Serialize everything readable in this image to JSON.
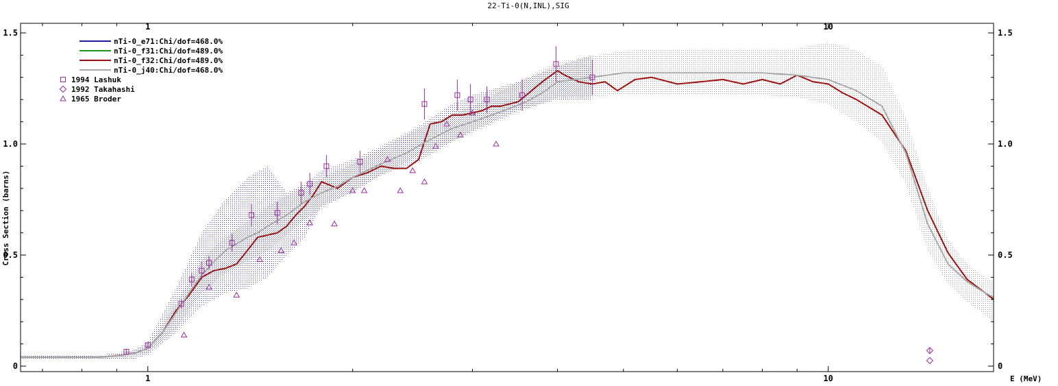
{
  "chart_data": {
    "type": "line",
    "title": "22-Ti-0(N,INL),SIG",
    "xlabel": "E (MeV)",
    "ylabel": "Cross Section (barns)",
    "xscale": "log",
    "xlim": [
      0.65,
      17.5
    ],
    "ylim": [
      0,
      1.5
    ],
    "x_ticks": [
      {
        "value": 1,
        "label": "1"
      },
      {
        "value": 10,
        "label": "10"
      }
    ],
    "y_ticks": [
      {
        "value": 0,
        "label": "0"
      },
      {
        "value": 0.5,
        "label": "0.5"
      },
      {
        "value": 1.0,
        "label": "1.0"
      },
      {
        "value": 1.5,
        "label": "1.5"
      }
    ],
    "legend_position": "top-left",
    "series": [
      {
        "name": "nTi-0_e71:Chi/dof=468.0%",
        "kind": "line",
        "color": "#1c1c9c",
        "visible": false,
        "x": [],
        "y": []
      },
      {
        "name": "nTi-0_f31:Chi/dof=489.0%",
        "kind": "line",
        "color": "#1a9a1a",
        "visible": false,
        "x": [],
        "y": []
      },
      {
        "name": "nTi-0_f32:Chi/dof=489.0%",
        "kind": "line",
        "color": "#9c1010",
        "x": [
          0.65,
          0.85,
          0.92,
          0.96,
          1.0,
          1.05,
          1.1,
          1.15,
          1.2,
          1.25,
          1.3,
          1.35,
          1.4,
          1.45,
          1.5,
          1.55,
          1.6,
          1.65,
          1.7,
          1.75,
          1.8,
          1.9,
          2.0,
          2.1,
          2.2,
          2.3,
          2.4,
          2.5,
          2.6,
          2.7,
          2.8,
          2.9,
          3.0,
          3.1,
          3.2,
          3.3,
          3.4,
          3.5,
          3.6,
          3.8,
          4.0,
          4.1,
          4.3,
          4.5,
          4.7,
          4.9,
          5.2,
          5.5,
          6.0,
          6.5,
          7.0,
          7.5,
          8.0,
          8.5,
          9.0,
          9.5,
          10.0,
          10.5,
          11.0,
          12.0,
          13.0,
          14.0,
          15.0,
          16.0,
          17.0,
          17.5
        ],
        "y": [
          0.04,
          0.04,
          0.05,
          0.06,
          0.08,
          0.15,
          0.25,
          0.32,
          0.4,
          0.43,
          0.44,
          0.46,
          0.52,
          0.58,
          0.59,
          0.6,
          0.63,
          0.68,
          0.72,
          0.77,
          0.83,
          0.8,
          0.85,
          0.87,
          0.9,
          0.89,
          0.89,
          0.93,
          1.09,
          1.1,
          1.13,
          1.13,
          1.14,
          1.15,
          1.17,
          1.17,
          1.18,
          1.19,
          1.22,
          1.28,
          1.33,
          1.31,
          1.28,
          1.27,
          1.28,
          1.24,
          1.29,
          1.3,
          1.27,
          1.28,
          1.29,
          1.27,
          1.29,
          1.27,
          1.31,
          1.28,
          1.27,
          1.23,
          1.2,
          1.13,
          0.97,
          0.7,
          0.51,
          0.39,
          0.33,
          0.3
        ]
      },
      {
        "name": "nTi-0_j40:Chi/dof=468.0%",
        "kind": "line",
        "color": "#a8a8a8",
        "x": [
          0.65,
          0.85,
          0.92,
          0.96,
          1.0,
          1.05,
          1.1,
          1.15,
          1.2,
          1.25,
          1.3,
          1.35,
          1.4,
          1.45,
          1.5,
          1.6,
          1.7,
          1.8,
          1.9,
          2.0,
          2.2,
          2.4,
          2.6,
          2.8,
          3.0,
          3.2,
          3.4,
          3.6,
          3.8,
          4.0,
          4.5,
          5.0,
          6.0,
          7.0,
          8.0,
          9.0,
          10.0,
          11.0,
          12.0,
          13.0,
          14.0,
          15.0,
          16.0,
          17.0,
          17.5
        ],
        "y": [
          0.04,
          0.04,
          0.05,
          0.06,
          0.08,
          0.15,
          0.24,
          0.33,
          0.41,
          0.47,
          0.52,
          0.55,
          0.58,
          0.6,
          0.63,
          0.68,
          0.74,
          0.78,
          0.81,
          0.85,
          0.91,
          0.96,
          1.02,
          1.07,
          1.1,
          1.13,
          1.16,
          1.19,
          1.23,
          1.28,
          1.3,
          1.32,
          1.32,
          1.32,
          1.32,
          1.31,
          1.29,
          1.24,
          1.17,
          0.96,
          0.64,
          0.46,
          0.38,
          0.33,
          0.31
        ]
      },
      {
        "name": "1994 Lashuk",
        "kind": "scatter",
        "marker": "square",
        "color": "#9c2c9c",
        "x": [
          0.93,
          1.0,
          1.12,
          1.16,
          1.2,
          1.23,
          1.33,
          1.42,
          1.55,
          1.68,
          1.73,
          1.83,
          2.05,
          2.55,
          2.85,
          2.98,
          3.15,
          3.55,
          3.98,
          4.5
        ],
        "y": [
          0.065,
          0.095,
          0.28,
          0.39,
          0.43,
          0.465,
          0.555,
          0.68,
          0.69,
          0.78,
          0.82,
          0.9,
          0.92,
          1.18,
          1.22,
          1.2,
          1.2,
          1.22,
          1.36,
          1.3
        ],
        "err": [
          0.01,
          0.01,
          0.02,
          0.03,
          0.04,
          0.03,
          0.04,
          0.05,
          0.05,
          0.05,
          0.05,
          0.05,
          0.05,
          0.07,
          0.07,
          0.07,
          0.06,
          0.07,
          0.08,
          0.08
        ]
      },
      {
        "name": "1992 Takahashi",
        "kind": "scatter",
        "marker": "diamond",
        "color": "#9c2c9c",
        "x": [
          14.1,
          14.1
        ],
        "y": [
          0.07,
          0.025
        ],
        "err": [
          0.015,
          0.0
        ]
      },
      {
        "name": "1965 Broder",
        "kind": "scatter",
        "marker": "triangle",
        "color": "#9c2c9c",
        "x": [
          1.13,
          1.23,
          1.35,
          1.46,
          1.57,
          1.64,
          1.73,
          1.88,
          2.0,
          2.08,
          2.25,
          2.35,
          2.45,
          2.55,
          2.65,
          2.75,
          2.88,
          3.0,
          3.25
        ],
        "y": [
          0.14,
          0.355,
          0.32,
          0.48,
          0.52,
          0.555,
          0.645,
          0.64,
          0.79,
          0.79,
          0.93,
          0.79,
          0.88,
          0.83,
          0.99,
          1.09,
          1.04,
          1.14,
          1.0
        ]
      }
    ],
    "uncertainty_bands": [
      {
        "color": "#6a6acc",
        "x": [
          0.65,
          0.85,
          0.95,
          1.0,
          1.1,
          1.2,
          1.3,
          1.4,
          1.5,
          1.6,
          1.7,
          1.8,
          2.0,
          2.2,
          2.5,
          2.8,
          3.0,
          3.5,
          4.0,
          4.5
        ],
        "lower": [
          0.03,
          0.03,
          0.03,
          0.05,
          0.15,
          0.27,
          0.33,
          0.35,
          0.4,
          0.5,
          0.58,
          0.72,
          0.78,
          0.86,
          0.92,
          1.01,
          1.06,
          1.15,
          1.2,
          1.2
        ],
        "upper": [
          0.05,
          0.05,
          0.07,
          0.11,
          0.35,
          0.6,
          0.75,
          0.85,
          0.9,
          0.78,
          0.82,
          0.88,
          0.93,
          0.99,
          1.08,
          1.18,
          1.22,
          1.28,
          1.35,
          1.4
        ]
      },
      {
        "color": "#bdbdbd",
        "x": [
          0.65,
          0.9,
          1.0,
          1.1,
          1.2,
          1.3,
          1.5,
          1.7,
          2.0,
          2.5,
          3.0,
          3.5,
          4.0,
          5.0,
          6.0,
          7.0,
          8.0,
          9.0,
          10.0,
          11.0,
          12.0,
          13.0,
          14.0,
          15.0,
          16.0,
          17.0,
          17.5
        ],
        "lower": [
          0.035,
          0.035,
          0.06,
          0.17,
          0.33,
          0.42,
          0.52,
          0.66,
          0.79,
          0.95,
          1.05,
          1.14,
          1.21,
          1.22,
          1.22,
          1.22,
          1.22,
          1.21,
          1.18,
          1.1,
          1.01,
          0.82,
          0.52,
          0.37,
          0.29,
          0.23,
          0.2
        ],
        "upper": [
          0.045,
          0.05,
          0.09,
          0.28,
          0.48,
          0.58,
          0.72,
          0.81,
          0.91,
          1.07,
          1.17,
          1.28,
          1.37,
          1.42,
          1.43,
          1.43,
          1.43,
          1.43,
          1.46,
          1.42,
          1.35,
          1.12,
          0.8,
          0.57,
          0.46,
          0.4,
          0.38
        ]
      }
    ]
  }
}
